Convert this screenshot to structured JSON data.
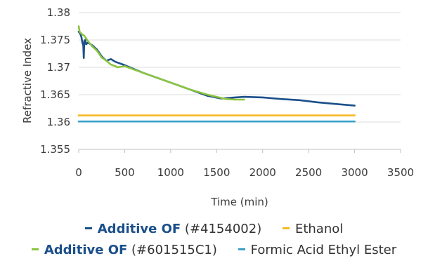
{
  "chart_data": {
    "type": "line",
    "xlabel": "Time (min)",
    "ylabel": "Refractive Index",
    "xlim": [
      0,
      3500
    ],
    "ylim": [
      1.355,
      1.38
    ],
    "x_ticks": [
      "0",
      "500",
      "1000",
      "1500",
      "2000",
      "2500",
      "3000",
      "3500"
    ],
    "y_ticks": [
      "1.355",
      "1.36",
      "1.365",
      "1.37",
      "1.375",
      "1.38"
    ],
    "grid": "horizontal",
    "legend_position": "bottom",
    "series": [
      {
        "name": "Additive OF (#4154002)",
        "name_bold": "Additive OF",
        "name_rest": " (#4154002)",
        "color": "#1b4f8a",
        "x": [
          0,
          10,
          20,
          30,
          40,
          50,
          55,
          60,
          70,
          80,
          100,
          150,
          200,
          250,
          300,
          350,
          380,
          400,
          500,
          700,
          1000,
          1200,
          1400,
          1550,
          1700,
          1800,
          2000,
          2200,
          2400,
          2600,
          2800,
          3000
        ],
        "y": [
          1.3765,
          1.3763,
          1.376,
          1.3755,
          1.3745,
          1.374,
          1.3717,
          1.3748,
          1.375,
          1.3742,
          1.3745,
          1.374,
          1.3732,
          1.372,
          1.3712,
          1.3715,
          1.3712,
          1.371,
          1.3704,
          1.369,
          1.3672,
          1.366,
          1.3648,
          1.3643,
          1.3645,
          1.3646,
          1.3645,
          1.3642,
          1.364,
          1.3636,
          1.3633,
          1.363
        ]
      },
      {
        "name": "Additive OF (#601515C1)",
        "name_bold": "Additive OF",
        "name_rest": " (#601515C1)",
        "color": "#8ac43f",
        "x": [
          0,
          5,
          10,
          20,
          40,
          60,
          100,
          150,
          200,
          250,
          300,
          350,
          400,
          420,
          500,
          700,
          1000,
          1200,
          1400,
          1500,
          1600,
          1700,
          1800
        ],
        "y": [
          1.3775,
          1.377,
          1.3765,
          1.3763,
          1.376,
          1.3758,
          1.3748,
          1.3738,
          1.373,
          1.3718,
          1.3712,
          1.3705,
          1.3702,
          1.37,
          1.3702,
          1.369,
          1.3672,
          1.366,
          1.365,
          1.3646,
          1.3642,
          1.3641,
          1.3641
        ]
      },
      {
        "name": "Ethanol",
        "name_bold": "",
        "name_rest": "Ethanol",
        "color": "#f5b922",
        "x": [
          0,
          3000
        ],
        "y": [
          1.3612,
          1.3612
        ]
      },
      {
        "name": "Formic Acid Ethyl Ester",
        "name_bold": "",
        "name_rest": "Formic Acid Ethyl Ester",
        "color": "#3aa0c8",
        "x": [
          0,
          3000
        ],
        "y": [
          1.3601,
          1.3601
        ]
      }
    ]
  }
}
